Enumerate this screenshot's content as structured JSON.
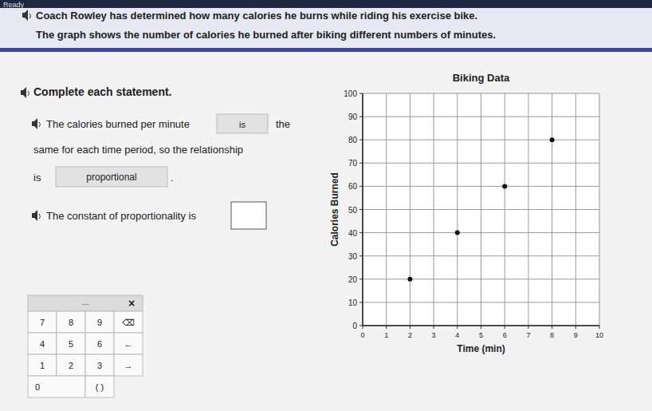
{
  "page": {
    "status": "Ready",
    "intro": [
      "Coach Rowley has determined how many calories he burns while riding his exercise bike.",
      "The graph shows the number of calories he burned after biking different numbers of minutes."
    ],
    "instruction": "Complete each statement.",
    "statement1": {
      "before": "The calories burned per minute",
      "answer1": "is",
      "after1": "the",
      "line2": "same for each time period, so the relationship",
      "line3": "is",
      "answer2": "proportional",
      "end": "."
    },
    "statement2": {
      "text": "The constant of proportionality is"
    },
    "keypad": {
      "header": "...",
      "close": "×",
      "rows": [
        [
          "7",
          "8",
          "9",
          "⌫"
        ],
        [
          "4",
          "5",
          "6",
          "←"
        ],
        [
          "1",
          "2",
          "3",
          "→"
        ],
        [
          "0",
          "( )"
        ]
      ]
    }
  },
  "chart_data": {
    "type": "scatter",
    "title": "Biking Data",
    "x_label": "Time (min)",
    "y_label": "Calories Burned",
    "x": [
      2,
      4,
      6,
      8
    ],
    "values": [
      20,
      40,
      60,
      80
    ],
    "color": "#111111",
    "marker": "circle",
    "xlim": [
      0,
      10
    ],
    "xticks": [
      0,
      1,
      2,
      3,
      4,
      5,
      6,
      7,
      8,
      9,
      10
    ],
    "ylim": [
      0,
      100
    ],
    "yticks": [
      0,
      10,
      20,
      30,
      40,
      50,
      60,
      70,
      80,
      90,
      100
    ],
    "grid": true
  }
}
